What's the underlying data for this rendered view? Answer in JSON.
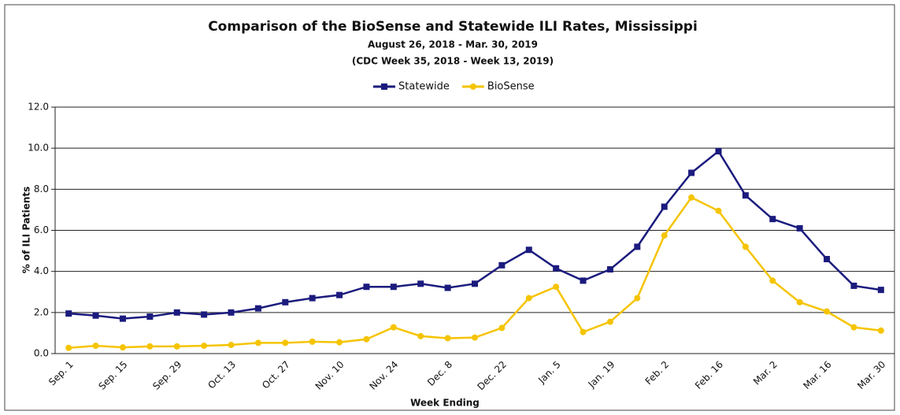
{
  "chart_data": {
    "type": "line",
    "title": "Comparison of the BioSense and Statewide ILI Rates, Mississippi",
    "subtitle": [
      "August 26, 2018 - Mar. 30, 2019",
      "(CDC Week 35, 2018 - Week 13, 2019)"
    ],
    "x_label": "Week Ending",
    "y_label": "% of ILI Patients",
    "categories": [
      "Sep. 1",
      null,
      "Sep. 15",
      null,
      "Sep. 29",
      null,
      "Oct. 13",
      null,
      "Oct. 27",
      null,
      "Nov. 10",
      null,
      "Nov. 24",
      null,
      "Dec. 8",
      null,
      "Dec. 22",
      null,
      "Jan. 5",
      null,
      "Jan. 19",
      null,
      "Feb. 2",
      null,
      "Feb. 16",
      null,
      "Mar. 2",
      null,
      "Mar. 16",
      null,
      "Mar. 30"
    ],
    "series": [
      {
        "name": "Statewide",
        "color": "#1b1b7e",
        "marker": "square",
        "values": [
          1.95,
          1.85,
          1.7,
          1.8,
          2.0,
          1.9,
          2.0,
          2.2,
          2.5,
          2.7,
          2.85,
          3.25,
          3.25,
          3.4,
          3.2,
          3.4,
          4.3,
          5.05,
          4.15,
          3.55,
          4.1,
          5.2,
          7.15,
          8.8,
          9.85,
          7.7,
          6.55,
          6.1,
          4.6,
          3.3,
          3.1
        ]
      },
      {
        "name": "BioSense",
        "color": "#f5c400",
        "marker": "circle",
        "values": [
          0.28,
          0.38,
          0.3,
          0.35,
          0.35,
          0.38,
          0.42,
          0.52,
          0.52,
          0.58,
          0.55,
          0.7,
          1.28,
          0.85,
          0.75,
          0.78,
          1.25,
          2.7,
          3.25,
          1.05,
          1.55,
          2.7,
          5.75,
          7.6,
          6.95,
          5.2,
          3.55,
          2.5,
          2.05,
          1.28,
          1.12
        ]
      }
    ],
    "ylim": [
      0,
      12
    ],
    "yticks": [
      {
        "value": 0,
        "label": "0.0"
      },
      {
        "value": 2,
        "label": "2.0"
      },
      {
        "value": 4,
        "label": "4.0"
      },
      {
        "value": 6,
        "label": "6.0"
      },
      {
        "value": 8,
        "label": "8.0"
      },
      {
        "value": 10,
        "label": "10.0"
      },
      {
        "value": 12,
        "label": "12.0"
      }
    ],
    "grid": true,
    "legend": "top"
  }
}
